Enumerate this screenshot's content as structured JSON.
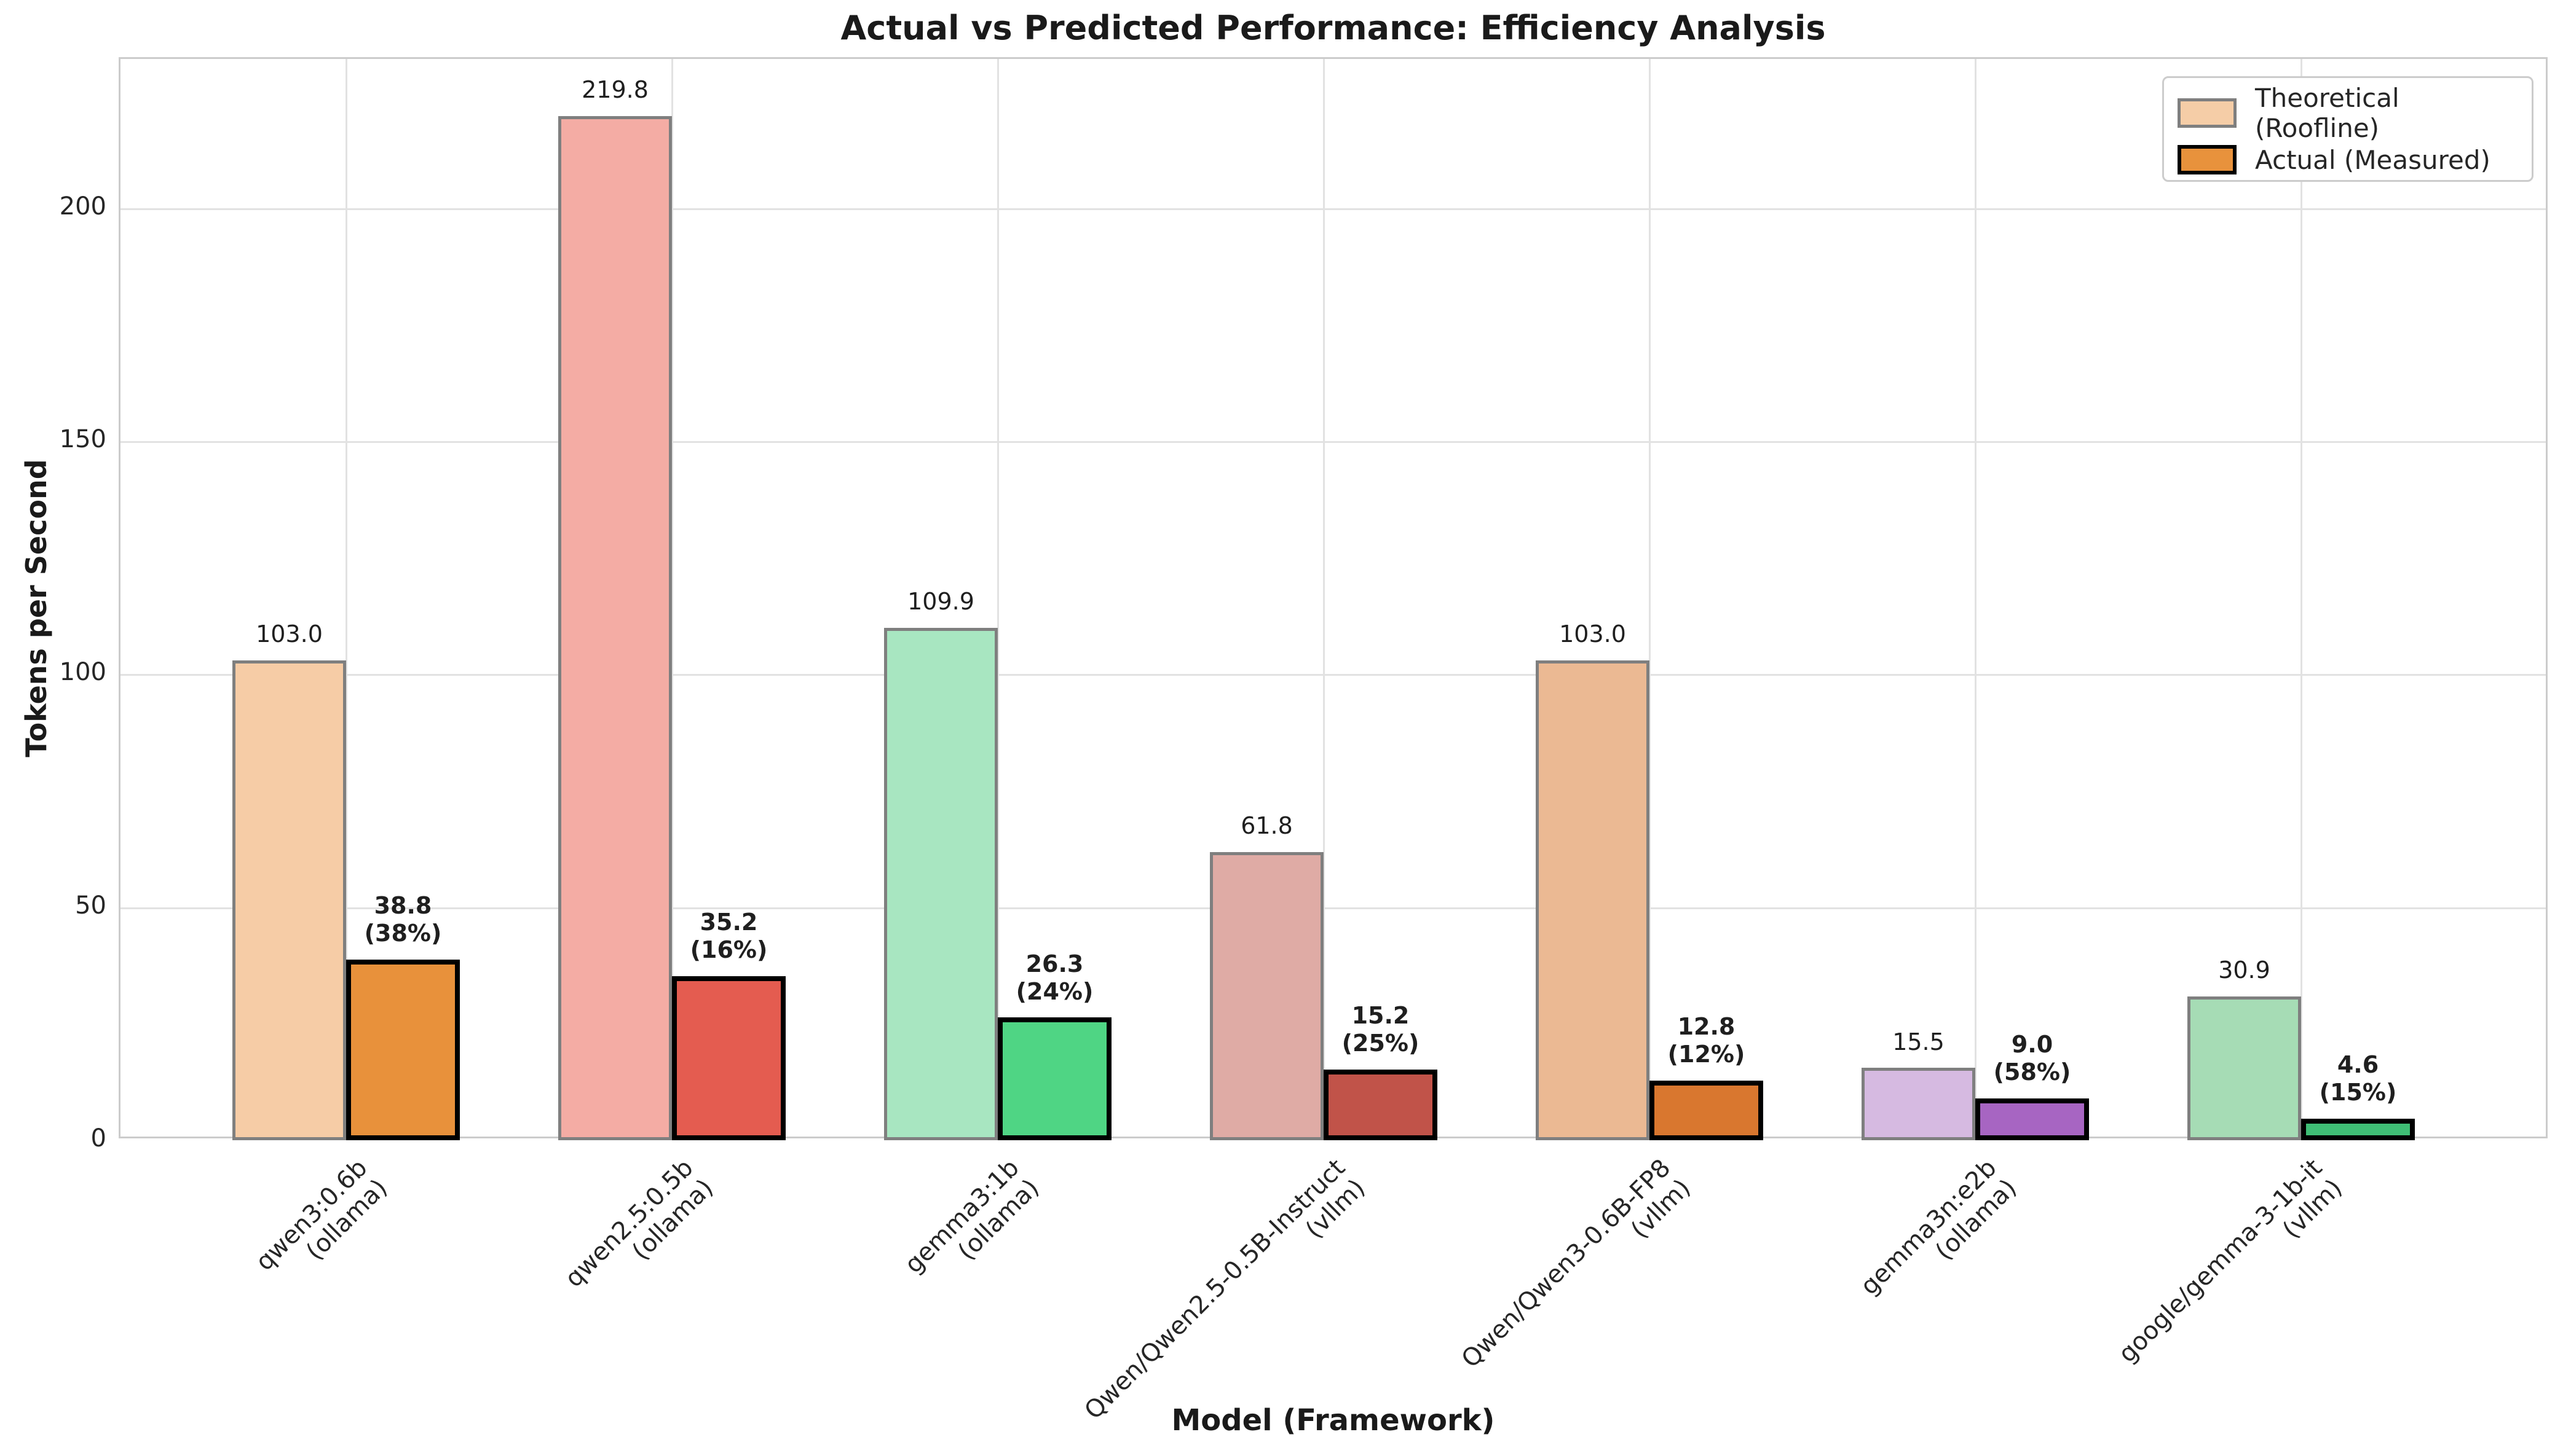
{
  "figure": {
    "title": "Actual vs Predicted Performance: Efficiency Analysis",
    "xlabel": "Model (Framework)",
    "ylabel": "Tokens per Second"
  },
  "legend": {
    "items": [
      {
        "label": "Theoretical (Roofline)",
        "fill": "#f5cda7",
        "border": "#7f7f7f"
      },
      {
        "label": "Actual (Measured)",
        "fill": "#e8923c",
        "border": "#000000"
      }
    ]
  },
  "chart_data": {
    "type": "bar",
    "title": "Actual vs Predicted Performance: Efficiency Analysis",
    "xlabel": "Model (Framework)",
    "ylabel": "Tokens per Second",
    "ylim": [
      0,
      232
    ],
    "yticks": [
      0,
      50,
      100,
      150,
      200
    ],
    "grid": true,
    "legend_position": "upper right",
    "categories": [
      "qwen3:0.6b\n(ollama)",
      "qwen2.5:0.5b\n(ollama)",
      "gemma3:1b\n(ollama)",
      "Qwen/Qwen2.5-0.5B-Instruct\n(vllm)",
      "Qwen/Qwen3-0.6B-FP8\n(vllm)",
      "gemma3n:e2b\n(ollama)",
      "google/gemma-3-1b-it\n(vllm)"
    ],
    "series": [
      {
        "name": "Theoretical (Roofline)",
        "values": [
          103.0,
          219.8,
          109.9,
          61.8,
          103.0,
          15.5,
          30.9
        ],
        "value_labels": [
          "103.0",
          "219.8",
          "109.9",
          "61.8",
          "103.0",
          "15.5",
          "30.9"
        ],
        "colors": [
          "#f6cca6",
          "#f4aca4",
          "#a8e6c1",
          "#dfaba5",
          "#ebb993",
          "#d6bae1",
          "#a6dcb5"
        ],
        "edge_color": "#7f7f7f"
      },
      {
        "name": "Actual (Measured)",
        "values": [
          38.8,
          35.2,
          26.3,
          15.2,
          12.8,
          9.0,
          4.6
        ],
        "value_labels": [
          "38.8\n(38%)",
          "35.2\n(16%)",
          "26.3\n(24%)",
          "15.2\n(25%)",
          "12.8\n(12%)",
          "9.0\n(58%)",
          "4.6\n(15%)"
        ],
        "efficiency_pct": [
          38,
          16,
          24,
          25,
          12,
          58,
          15
        ],
        "colors": [
          "#e8913b",
          "#e45c50",
          "#4fd584",
          "#c15349",
          "#d9772f",
          "#a765c2",
          "#3fbe75"
        ],
        "edge_color": "#000000"
      }
    ]
  }
}
